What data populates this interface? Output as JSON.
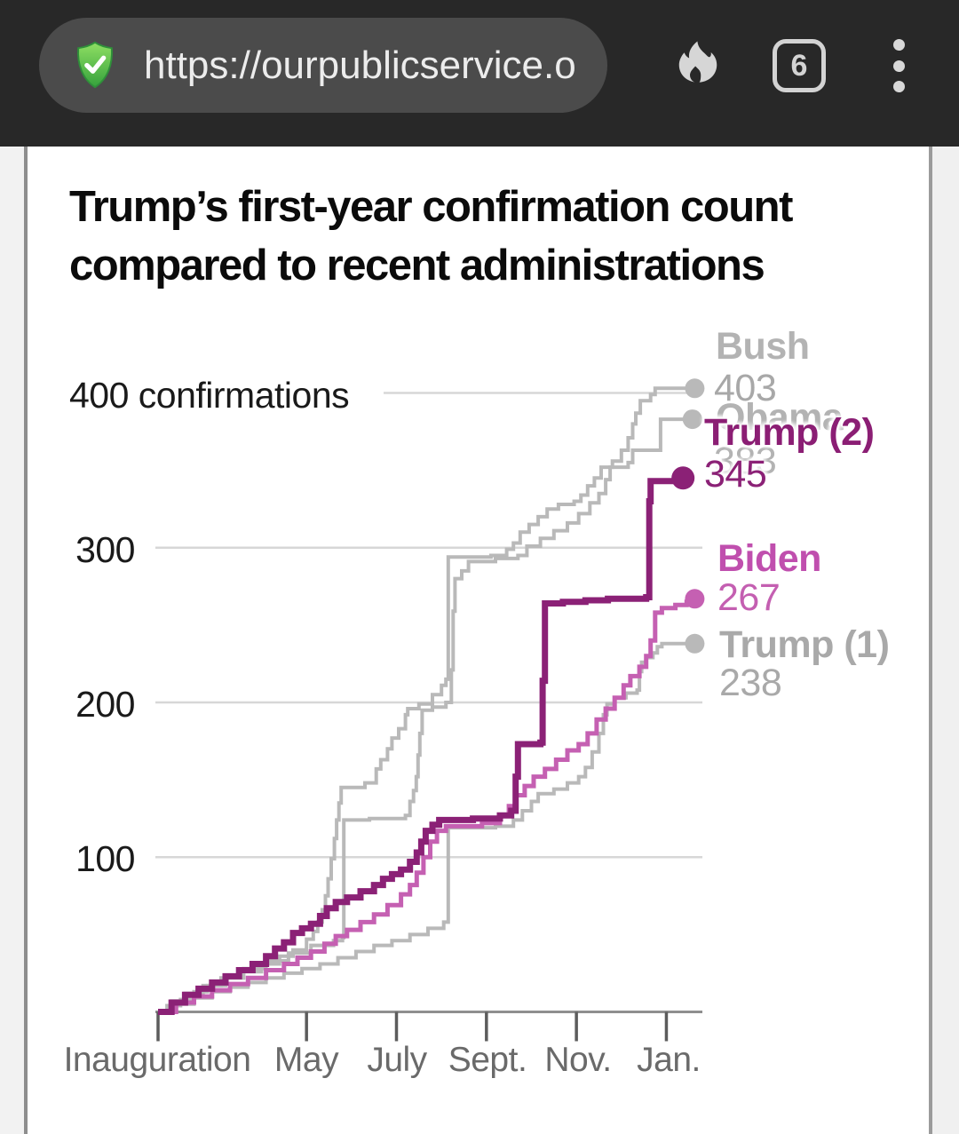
{
  "browser": {
    "url": "https://ourpublicservice.o",
    "tab_count": "6",
    "security_icon": "shield-check-icon",
    "private_mode_icon": "flame-icon",
    "menu_icon": "kebab-menu-icon"
  },
  "page": {
    "title_line1": "Trump’s first-year confirmation count",
    "title_line2": "compared to recent administrations"
  },
  "chart_data": {
    "type": "line",
    "title": "Trump’s first-year confirmation count compared to recent administrations",
    "grid": true,
    "legend_position": "right-end-of-lines",
    "x_axis": {
      "unit": "months since inauguration",
      "tick_labels": [
        "Inauguration",
        "May",
        "July",
        "Sept.",
        "Nov.",
        "Jan."
      ],
      "tick_months": [
        0,
        3.3,
        5.3,
        7.3,
        9.3,
        11.3
      ],
      "range_months": [
        0,
        12
      ]
    },
    "y_axis": {
      "label_top": "400 confirmations",
      "ticks": [
        100,
        200,
        300,
        400
      ],
      "range": [
        0,
        420
      ]
    },
    "series": [
      {
        "name": "Bush",
        "final_value": 403,
        "color": "#b9b9b9",
        "stroke_width": 4,
        "dot": [
          11.93,
          403
        ],
        "dot_r": 11,
        "points": [
          [
            0,
            0
          ],
          [
            0.2,
            4
          ],
          [
            0.5,
            8
          ],
          [
            0.8,
            13
          ],
          [
            1.1,
            17
          ],
          [
            1.5,
            22
          ],
          [
            1.9,
            26
          ],
          [
            2.3,
            31
          ],
          [
            2.7,
            36
          ],
          [
            3.0,
            40
          ],
          [
            3.3,
            47
          ],
          [
            3.45,
            52
          ],
          [
            3.55,
            58
          ],
          [
            3.65,
            66
          ],
          [
            3.72,
            75
          ],
          [
            3.78,
            86
          ],
          [
            3.85,
            99
          ],
          [
            3.92,
            112
          ],
          [
            3.97,
            124
          ],
          [
            4.02,
            135
          ],
          [
            4.07,
            145
          ],
          [
            4.6,
            148
          ],
          [
            4.85,
            157
          ],
          [
            4.95,
            163
          ],
          [
            5.1,
            170
          ],
          [
            5.2,
            177
          ],
          [
            5.35,
            183
          ],
          [
            5.5,
            192
          ],
          [
            5.55,
            196
          ],
          [
            5.8,
            199
          ],
          [
            6.1,
            205
          ],
          [
            6.3,
            211
          ],
          [
            6.4,
            215
          ],
          [
            6.45,
            294
          ],
          [
            7.4,
            295
          ],
          [
            7.75,
            299
          ],
          [
            7.9,
            303
          ],
          [
            8.05,
            310
          ],
          [
            8.25,
            315
          ],
          [
            8.45,
            320
          ],
          [
            8.65,
            325
          ],
          [
            8.9,
            328
          ],
          [
            9.25,
            330
          ],
          [
            9.4,
            334
          ],
          [
            9.55,
            340
          ],
          [
            9.7,
            345
          ],
          [
            9.85,
            352
          ],
          [
            10.1,
            356
          ],
          [
            10.3,
            363
          ],
          [
            10.45,
            371
          ],
          [
            10.55,
            380
          ],
          [
            10.62,
            387
          ],
          [
            10.72,
            395
          ],
          [
            10.95,
            399
          ],
          [
            11.05,
            403
          ],
          [
            11.93,
            403
          ]
        ]
      },
      {
        "name": "Obama",
        "final_value": 383,
        "color": "#b9b9b9",
        "stroke_width": 4,
        "dot": [
          11.88,
          383
        ],
        "dot_r": 11,
        "points": [
          [
            0,
            0
          ],
          [
            0.3,
            7
          ],
          [
            0.6,
            12
          ],
          [
            1.0,
            17
          ],
          [
            1.4,
            22
          ],
          [
            1.9,
            28
          ],
          [
            2.4,
            33
          ],
          [
            2.9,
            38
          ],
          [
            3.4,
            43
          ],
          [
            3.9,
            46
          ],
          [
            4.1,
            48
          ],
          [
            4.13,
            124
          ],
          [
            4.7,
            125
          ],
          [
            5.5,
            127
          ],
          [
            5.6,
            136
          ],
          [
            5.68,
            143
          ],
          [
            5.74,
            152
          ],
          [
            5.78,
            166
          ],
          [
            5.82,
            180
          ],
          [
            5.87,
            195
          ],
          [
            6.1,
            197
          ],
          [
            6.4,
            200
          ],
          [
            6.52,
            221
          ],
          [
            6.56,
            259
          ],
          [
            6.6,
            280
          ],
          [
            6.75,
            285
          ],
          [
            6.9,
            291
          ],
          [
            7.5,
            293
          ],
          [
            8.0,
            295
          ],
          [
            8.2,
            301
          ],
          [
            8.5,
            306
          ],
          [
            8.8,
            311
          ],
          [
            9.1,
            316
          ],
          [
            9.35,
            322
          ],
          [
            9.6,
            329
          ],
          [
            9.8,
            335
          ],
          [
            9.95,
            344
          ],
          [
            10.05,
            352
          ],
          [
            10.45,
            355
          ],
          [
            10.55,
            363
          ],
          [
            11.1,
            363
          ],
          [
            11.17,
            383
          ],
          [
            11.88,
            383
          ]
        ]
      },
      {
        "name": "Trump (1)",
        "final_value": 238,
        "color": "#b9b9b9",
        "stroke_width": 4,
        "dot": [
          11.93,
          238
        ],
        "dot_r": 11,
        "points": [
          [
            0,
            0
          ],
          [
            0.4,
            5
          ],
          [
            0.8,
            9
          ],
          [
            1.2,
            13
          ],
          [
            1.6,
            16
          ],
          [
            2.0,
            19
          ],
          [
            2.4,
            22
          ],
          [
            2.8,
            25
          ],
          [
            3.2,
            28
          ],
          [
            3.6,
            31
          ],
          [
            4.0,
            35
          ],
          [
            4.4,
            39
          ],
          [
            4.8,
            43
          ],
          [
            5.2,
            46
          ],
          [
            5.6,
            50
          ],
          [
            6.0,
            54
          ],
          [
            6.35,
            58
          ],
          [
            6.45,
            119
          ],
          [
            7.5,
            120
          ],
          [
            7.9,
            124
          ],
          [
            8.1,
            130
          ],
          [
            8.3,
            136
          ],
          [
            8.45,
            141
          ],
          [
            8.8,
            144
          ],
          [
            9.1,
            148
          ],
          [
            9.35,
            152
          ],
          [
            9.5,
            158
          ],
          [
            9.65,
            168
          ],
          [
            9.8,
            180
          ],
          [
            9.9,
            192
          ],
          [
            9.98,
            199
          ],
          [
            10.15,
            203
          ],
          [
            10.4,
            206
          ],
          [
            10.65,
            208
          ],
          [
            10.7,
            220
          ],
          [
            10.75,
            226
          ],
          [
            10.85,
            229
          ],
          [
            11.0,
            232
          ],
          [
            11.1,
            236
          ],
          [
            11.2,
            238
          ],
          [
            11.93,
            238
          ]
        ]
      },
      {
        "name": "Biden",
        "final_value": 267,
        "color": "#c560b2",
        "stroke_width": 5,
        "dot": [
          11.93,
          267
        ],
        "dot_r": 11,
        "points": [
          [
            0,
            0
          ],
          [
            0.4,
            6
          ],
          [
            0.8,
            10
          ],
          [
            1.2,
            14
          ],
          [
            1.6,
            18
          ],
          [
            2.0,
            22
          ],
          [
            2.4,
            27
          ],
          [
            2.8,
            31
          ],
          [
            3.1,
            35
          ],
          [
            3.4,
            39
          ],
          [
            3.7,
            44
          ],
          [
            3.95,
            49
          ],
          [
            4.2,
            53
          ],
          [
            4.5,
            58
          ],
          [
            4.8,
            63
          ],
          [
            5.1,
            69
          ],
          [
            5.4,
            76
          ],
          [
            5.6,
            82
          ],
          [
            5.75,
            90
          ],
          [
            5.9,
            100
          ],
          [
            6.05,
            110
          ],
          [
            6.2,
            117
          ],
          [
            6.4,
            120
          ],
          [
            7.2,
            122
          ],
          [
            7.6,
            127
          ],
          [
            7.8,
            133
          ],
          [
            7.95,
            140
          ],
          [
            8.15,
            146
          ],
          [
            8.35,
            152
          ],
          [
            8.6,
            157
          ],
          [
            8.85,
            163
          ],
          [
            9.1,
            169
          ],
          [
            9.35,
            173
          ],
          [
            9.55,
            180
          ],
          [
            9.75,
            189
          ],
          [
            9.95,
            196
          ],
          [
            10.15,
            203
          ],
          [
            10.35,
            211
          ],
          [
            10.5,
            217
          ],
          [
            10.7,
            223
          ],
          [
            10.85,
            230
          ],
          [
            10.95,
            240
          ],
          [
            11.05,
            258
          ],
          [
            11.2,
            261
          ],
          [
            11.5,
            263
          ],
          [
            11.75,
            265
          ],
          [
            11.85,
            267
          ],
          [
            11.93,
            267
          ]
        ]
      },
      {
        "name": "Trump (2)",
        "final_value": 345,
        "color": "#8b2176",
        "stroke_width": 7,
        "dot": [
          11.67,
          345
        ],
        "dot_r": 13,
        "points": [
          [
            0,
            0
          ],
          [
            0.3,
            6
          ],
          [
            0.6,
            11
          ],
          [
            0.9,
            15
          ],
          [
            1.2,
            19
          ],
          [
            1.5,
            23
          ],
          [
            1.8,
            27
          ],
          [
            2.1,
            31
          ],
          [
            2.4,
            36
          ],
          [
            2.6,
            41
          ],
          [
            2.8,
            45
          ],
          [
            3.0,
            51
          ],
          [
            3.2,
            54
          ],
          [
            3.4,
            57
          ],
          [
            3.6,
            62
          ],
          [
            3.75,
            67
          ],
          [
            3.95,
            71
          ],
          [
            4.2,
            74
          ],
          [
            4.5,
            78
          ],
          [
            4.8,
            82
          ],
          [
            5.0,
            86
          ],
          [
            5.2,
            89
          ],
          [
            5.4,
            92
          ],
          [
            5.6,
            97
          ],
          [
            5.75,
            103
          ],
          [
            5.85,
            110
          ],
          [
            5.95,
            117
          ],
          [
            6.1,
            121
          ],
          [
            6.25,
            124
          ],
          [
            7.0,
            125
          ],
          [
            7.6,
            127
          ],
          [
            7.85,
            130
          ],
          [
            7.95,
            152
          ],
          [
            8.0,
            173
          ],
          [
            8.5,
            174
          ],
          [
            8.55,
            214
          ],
          [
            8.6,
            264
          ],
          [
            9.0,
            265
          ],
          [
            9.5,
            266
          ],
          [
            10.0,
            267
          ],
          [
            10.85,
            268
          ],
          [
            10.92,
            330
          ],
          [
            10.95,
            343
          ],
          [
            11.67,
            345
          ]
        ]
      }
    ]
  }
}
